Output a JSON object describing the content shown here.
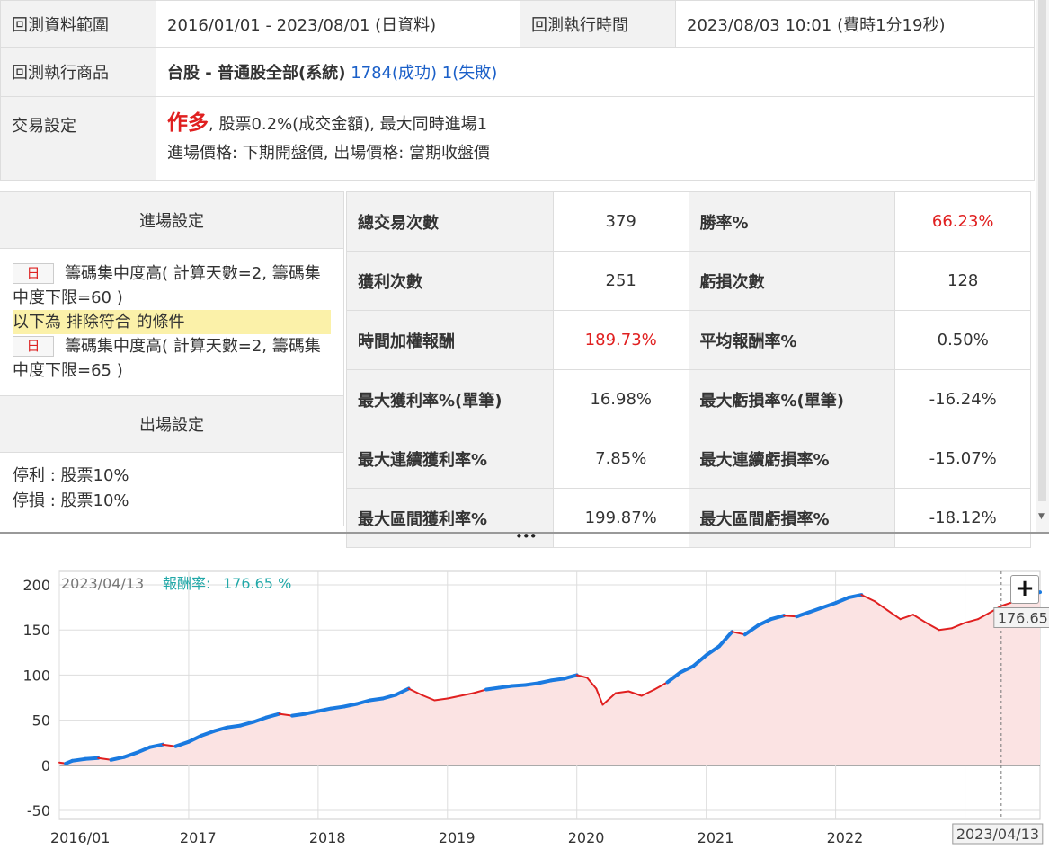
{
  "summary": {
    "range_label": "回測資料範圍",
    "range_value": "2016/01/01 - 2023/08/01 (日資料)",
    "exec_time_label": "回測執行時間",
    "exec_time_value": "2023/08/03 10:01 (費時1分19秒)",
    "products_label": "回測執行商品",
    "products_market": "台股 - 普通股全部(系統)",
    "products_success": "1784(成功)",
    "products_fail": "1(失敗)",
    "trade_label": "交易設定",
    "trade_direction": "作多",
    "trade_detail": ", 股票0.2%(成交金額), 最大同時進場1",
    "trade_prices": "進場價格: 下期開盤價, 出場價格: 當期收盤價"
  },
  "entry": {
    "title": "進場設定",
    "day_tag": "日",
    "condition1": "籌碼集中度高( 計算天數=2, 籌碼集中度下限=60 )",
    "exclude_note": "以下為 排除符合 的條件",
    "condition2": "籌碼集中度高( 計算天數=2, 籌碼集中度下限=65 )"
  },
  "exit": {
    "title": "出場設定",
    "take_profit": "停利 : 股票10%",
    "stop_loss": "停損 : 股票10%"
  },
  "stats": {
    "rows": [
      {
        "l1": "總交易次數",
        "v1": "379",
        "l2": "勝率%",
        "v2": "66.23%"
      },
      {
        "l1": "獲利次數",
        "v1": "251",
        "l2": "虧損次數",
        "v2": "128"
      },
      {
        "l1": "時間加權報酬",
        "v1": "189.73%",
        "l2": "平均報酬率%",
        "v2": "0.50%"
      },
      {
        "l1": "最大獲利率%(單筆)",
        "v1": "16.98%",
        "l2": "最大虧損率%(單筆)",
        "v2": "-16.24%"
      },
      {
        "l1": "最大連續獲利率%",
        "v1": "7.85%",
        "l2": "最大連續虧損率%",
        "v2": "-15.07%"
      },
      {
        "l1": "最大區間獲利率%",
        "v1": "199.87%",
        "l2": "最大區間虧損率%",
        "v2": "-18.12%"
      }
    ],
    "highlight_color": "#e02020"
  },
  "chart_data": {
    "type": "line",
    "title": "",
    "tooltip_date": "2023/04/13",
    "tooltip_label": "報酬率:",
    "tooltip_value": "176.65 %",
    "crosshair_value": "176.65",
    "crosshair_date": "2023/04/13",
    "ylim": [
      -60,
      215
    ],
    "yticks": [
      -50,
      0,
      50,
      100,
      150,
      200
    ],
    "xticks": [
      {
        "label": "2016/01",
        "x": 2016.0
      },
      {
        "label": "2017",
        "x": 2017.0
      },
      {
        "label": "2018",
        "x": 2018.0
      },
      {
        "label": "2019",
        "x": 2019.0
      },
      {
        "label": "2020",
        "x": 2020.0
      },
      {
        "label": "2021",
        "x": 2021.0
      },
      {
        "label": "2022",
        "x": 2022.0
      },
      {
        "label": "2023",
        "x": 2023.0
      }
    ],
    "xlim": [
      2016.0,
      2023.58
    ],
    "crosshair_x": 2023.28,
    "line_color": "#e02020",
    "new_high_color": "#1a7ae0",
    "fill_color": "#fbe3e3",
    "series": [
      {
        "values": [
          [
            2016.0,
            3
          ],
          [
            2016.05,
            2
          ],
          [
            2016.1,
            5
          ],
          [
            2016.2,
            7
          ],
          [
            2016.3,
            8
          ],
          [
            2016.4,
            6
          ],
          [
            2016.5,
            9
          ],
          [
            2016.6,
            14
          ],
          [
            2016.7,
            20
          ],
          [
            2016.8,
            23
          ],
          [
            2016.9,
            21
          ],
          [
            2017.0,
            26
          ],
          [
            2017.1,
            33
          ],
          [
            2017.2,
            38
          ],
          [
            2017.3,
            42
          ],
          [
            2017.4,
            44
          ],
          [
            2017.5,
            48
          ],
          [
            2017.6,
            53
          ],
          [
            2017.7,
            57
          ],
          [
            2017.8,
            55
          ],
          [
            2017.9,
            57
          ],
          [
            2018.0,
            60
          ],
          [
            2018.1,
            63
          ],
          [
            2018.2,
            65
          ],
          [
            2018.3,
            68
          ],
          [
            2018.4,
            72
          ],
          [
            2018.5,
            74
          ],
          [
            2018.6,
            78
          ],
          [
            2018.7,
            85
          ],
          [
            2018.8,
            78
          ],
          [
            2018.9,
            72
          ],
          [
            2019.0,
            74
          ],
          [
            2019.1,
            77
          ],
          [
            2019.2,
            80
          ],
          [
            2019.3,
            84
          ],
          [
            2019.4,
            86
          ],
          [
            2019.5,
            88
          ],
          [
            2019.6,
            89
          ],
          [
            2019.7,
            91
          ],
          [
            2019.8,
            94
          ],
          [
            2019.9,
            96
          ],
          [
            2020.0,
            100
          ],
          [
            2020.08,
            97
          ],
          [
            2020.15,
            85
          ],
          [
            2020.2,
            67
          ],
          [
            2020.3,
            80
          ],
          [
            2020.4,
            82
          ],
          [
            2020.5,
            77
          ],
          [
            2020.6,
            84
          ],
          [
            2020.7,
            92
          ],
          [
            2020.8,
            103
          ],
          [
            2020.9,
            110
          ],
          [
            2021.0,
            122
          ],
          [
            2021.1,
            132
          ],
          [
            2021.2,
            148
          ],
          [
            2021.3,
            145
          ],
          [
            2021.4,
            155
          ],
          [
            2021.5,
            162
          ],
          [
            2021.6,
            166
          ],
          [
            2021.7,
            165
          ],
          [
            2021.8,
            170
          ],
          [
            2021.9,
            175
          ],
          [
            2022.0,
            180
          ],
          [
            2022.1,
            186
          ],
          [
            2022.2,
            189
          ],
          [
            2022.3,
            182
          ],
          [
            2022.4,
            172
          ],
          [
            2022.5,
            162
          ],
          [
            2022.6,
            167
          ],
          [
            2022.7,
            158
          ],
          [
            2022.8,
            150
          ],
          [
            2022.9,
            152
          ],
          [
            2023.0,
            158
          ],
          [
            2023.1,
            162
          ],
          [
            2023.2,
            170
          ],
          [
            2023.28,
            176.65
          ],
          [
            2023.35,
            180
          ],
          [
            2023.45,
            185
          ],
          [
            2023.52,
            190
          ],
          [
            2023.58,
            192
          ]
        ]
      }
    ]
  }
}
